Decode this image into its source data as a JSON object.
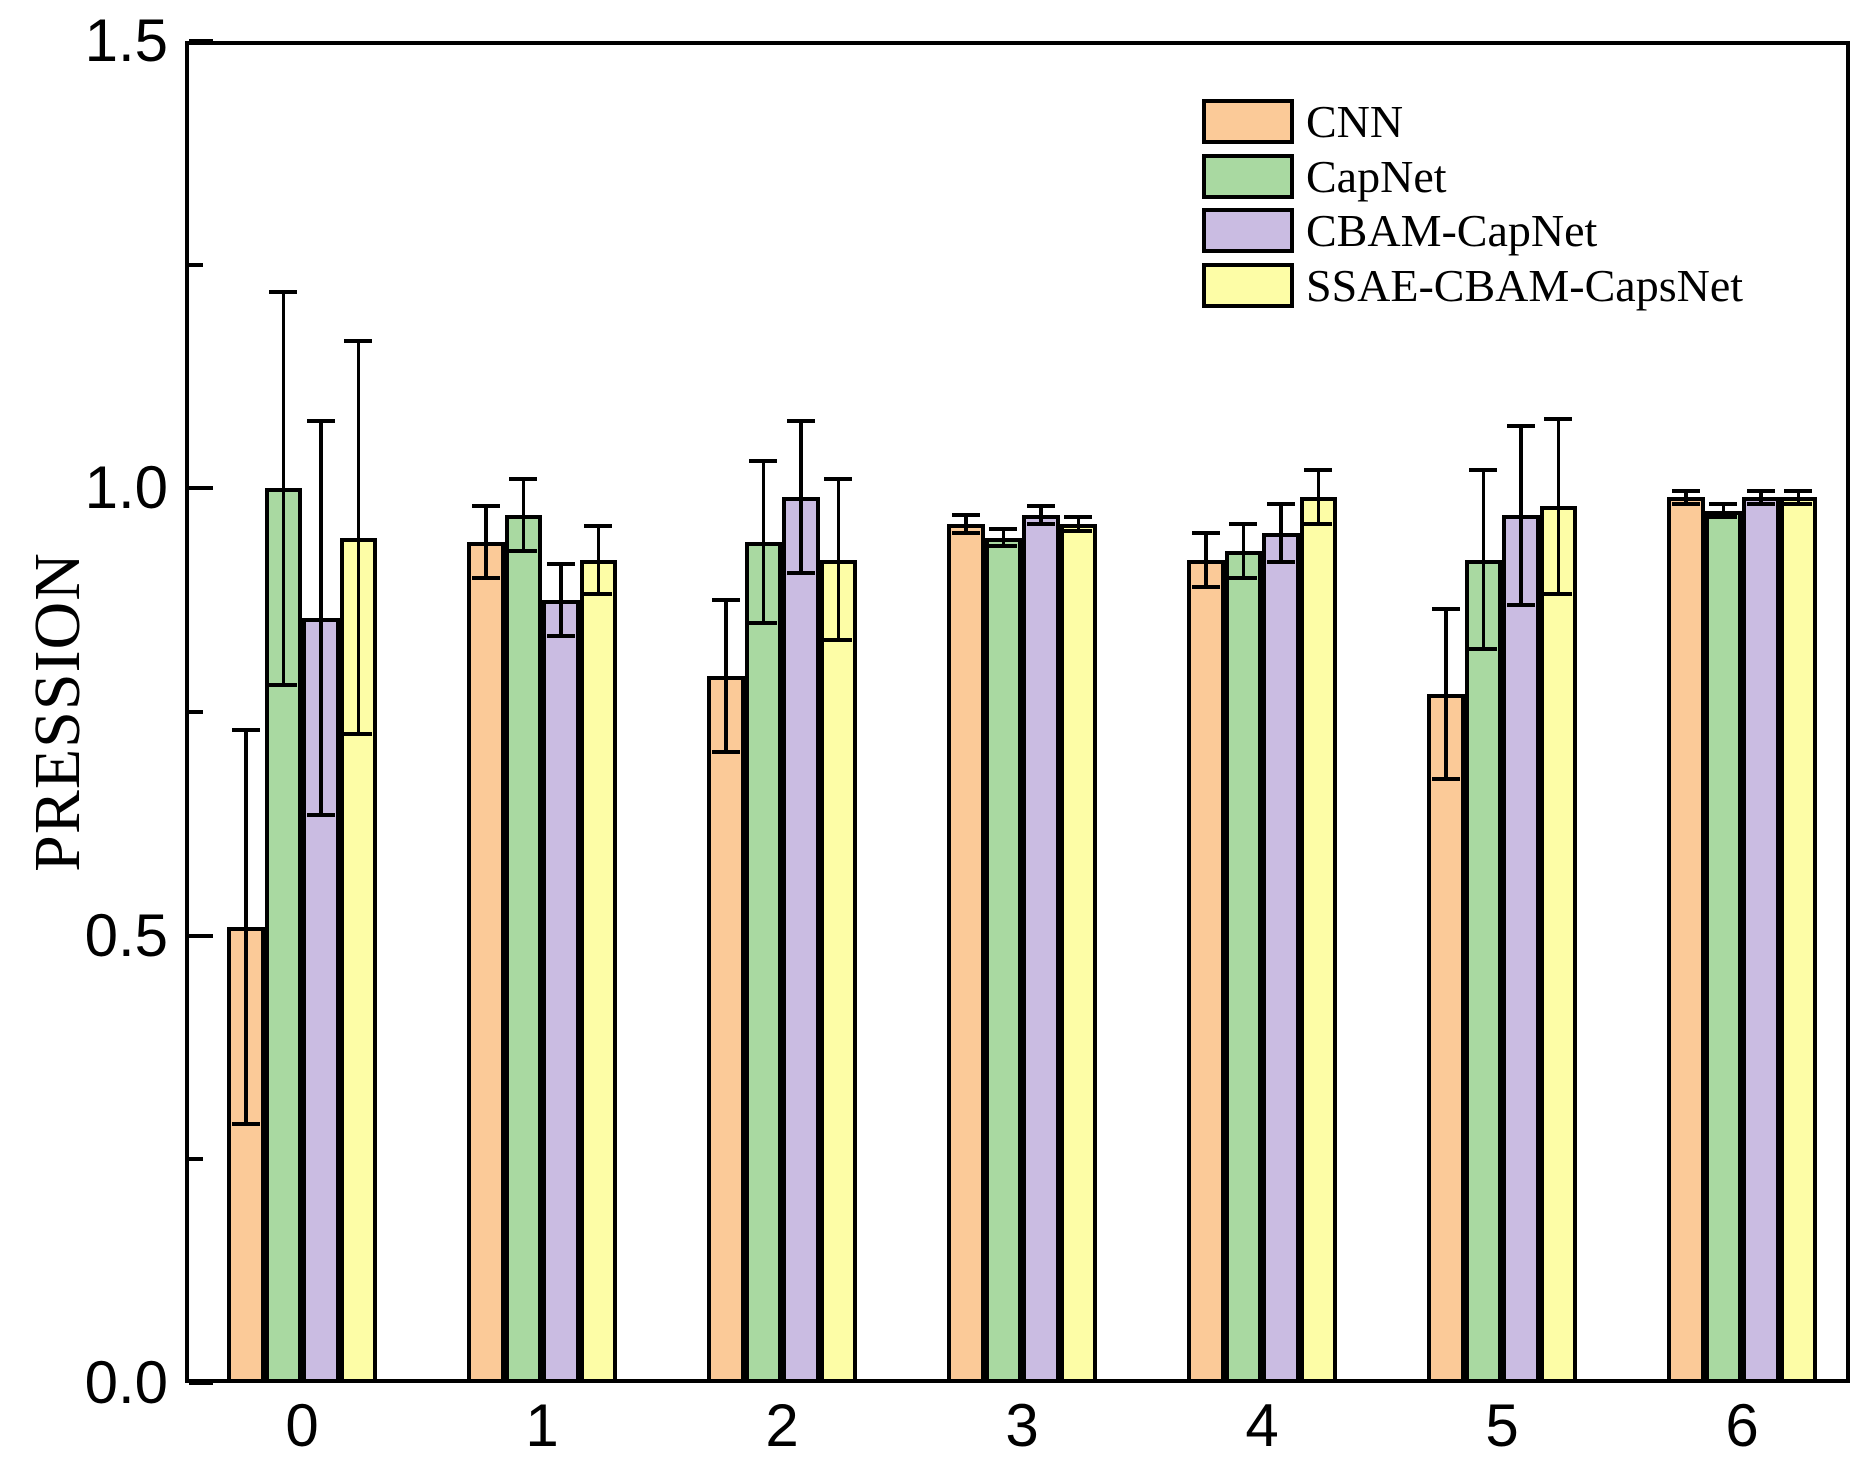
{
  "chart_data": {
    "type": "bar",
    "title": "",
    "xlabel": "",
    "ylabel": "PRESSION",
    "categories": [
      "0",
      "1",
      "2",
      "3",
      "4",
      "5",
      "6"
    ],
    "series": [
      {
        "name": "CNN",
        "color": "#FBCA98",
        "values": [
          0.51,
          0.94,
          0.79,
          0.96,
          0.92,
          0.77,
          0.99
        ],
        "errors": [
          0.22,
          0.04,
          0.085,
          0.01,
          0.03,
          0.095,
          0.007
        ]
      },
      {
        "name": "CapNet",
        "color": "#A9D9A1",
        "values": [
          1.0,
          0.97,
          0.94,
          0.945,
          0.93,
          0.92,
          0.975
        ],
        "errors": [
          0.22,
          0.04,
          0.09,
          0.01,
          0.03,
          0.1,
          0.007
        ]
      },
      {
        "name": "CBAM-CapNet",
        "color": "#CABCE2",
        "values": [
          0.855,
          0.875,
          0.99,
          0.97,
          0.95,
          0.97,
          0.99
        ],
        "errors": [
          0.22,
          0.04,
          0.085,
          0.01,
          0.032,
          0.1,
          0.007
        ]
      },
      {
        "name": "SSAE-CBAM-CapsNet",
        "color": "#FDFDA6",
        "values": [
          0.945,
          0.92,
          0.92,
          0.96,
          0.99,
          0.98,
          0.99
        ],
        "errors": [
          0.22,
          0.038,
          0.09,
          0.008,
          0.03,
          0.098,
          0.007
        ]
      }
    ],
    "ylim": [
      0.0,
      1.5
    ],
    "y_major_ticks": [
      0.0,
      0.5,
      1.0,
      1.5
    ],
    "y_tick_labels": [
      "0.0",
      "0.5",
      "1.0",
      "1.5"
    ],
    "y_minor_ticks": [
      0.25,
      0.75,
      1.25
    ],
    "grid": false,
    "legend_position": "top-right",
    "bar_edge_color": "#000000",
    "error_bar_color": "#000000"
  }
}
